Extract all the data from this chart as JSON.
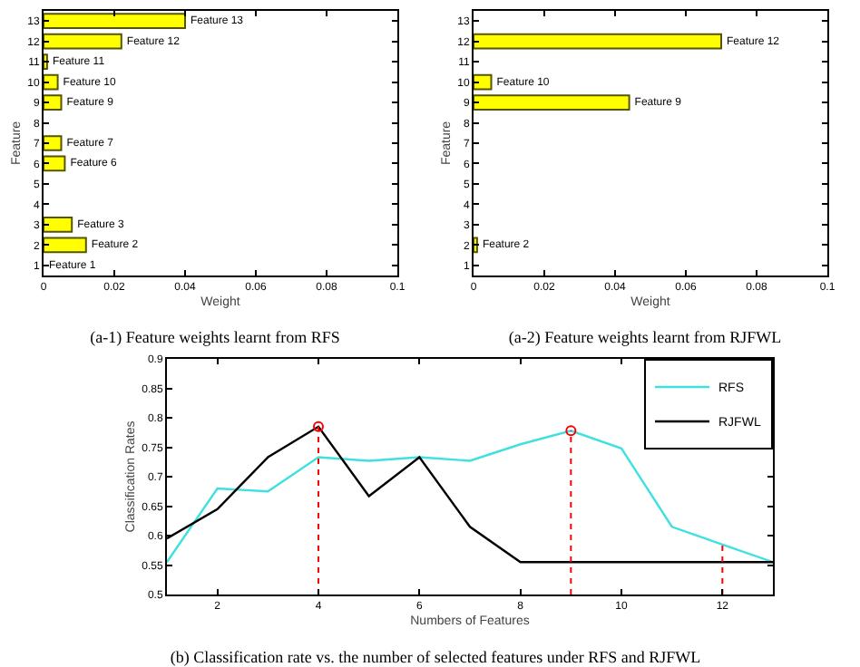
{
  "chart_data": [
    {
      "type": "bar",
      "orientation": "horizontal",
      "title": "(a-1) Feature weights learnt from RFS",
      "xlabel": "Weight",
      "ylabel": "Feature",
      "categories": [
        "13",
        "12",
        "11",
        "10",
        "9",
        "8",
        "7",
        "6",
        "5",
        "4",
        "3",
        "2",
        "1"
      ],
      "values": [
        0.04,
        0.022,
        0.001,
        0.004,
        0.005,
        0,
        0.005,
        0.006,
        0,
        0,
        0.008,
        0.012,
        0
      ],
      "value_labels": [
        "Feature 13",
        "Feature 12",
        "Feature 11",
        "Feature 10",
        "Feature 9",
        null,
        "Feature 7",
        "Feature 6",
        null,
        null,
        "Feature 3",
        "Feature 2",
        "Feature 1"
      ],
      "color": "#ffff00",
      "xlim": [
        0,
        0.1
      ],
      "xticks": [
        0,
        0.02,
        0.04,
        0.06,
        0.08,
        0.1
      ],
      "grid": false,
      "legend": false
    },
    {
      "type": "bar",
      "orientation": "horizontal",
      "title": "(a-2) Feature weights learnt from RJFWL",
      "xlabel": "Weight",
      "ylabel": "Feature",
      "categories": [
        "13",
        "12",
        "11",
        "10",
        "9",
        "8",
        "7",
        "6",
        "5",
        "4",
        "3",
        "2",
        "1"
      ],
      "values": [
        0,
        0.07,
        0,
        0.005,
        0.044,
        0,
        0,
        0,
        0,
        0,
        0,
        0.001,
        0
      ],
      "value_labels": [
        null,
        "Feature 12",
        null,
        "Feature 10",
        "Feature 9",
        null,
        null,
        null,
        null,
        null,
        null,
        "Feature 2",
        null
      ],
      "color": "#ffff00",
      "xlim": [
        0,
        0.1
      ],
      "xticks": [
        0,
        0.02,
        0.04,
        0.06,
        0.08,
        0.1
      ],
      "grid": false,
      "legend": false
    },
    {
      "type": "line",
      "title": "(b) Classification rate vs. the number of selected features under RFS and RJFWL",
      "xlabel": "Numbers of Features",
      "ylabel": "Classification Rates",
      "x": [
        1,
        2,
        3,
        4,
        5,
        6,
        7,
        8,
        9,
        10,
        11,
        12,
        13
      ],
      "xlim": [
        1,
        13
      ],
      "xticks": [
        2,
        4,
        6,
        8,
        10,
        12
      ],
      "ylim": [
        0.5,
        0.9
      ],
      "yticks": [
        0.5,
        0.55,
        0.6,
        0.65,
        0.7,
        0.75,
        0.8,
        0.85,
        0.9
      ],
      "grid": false,
      "legend": "top right",
      "marker": "none",
      "line_style": "solid",
      "series": [
        {
          "name": "RFS",
          "color": "#40e0e0",
          "values": [
            0.555,
            0.68,
            0.675,
            0.733,
            0.727,
            0.733,
            0.727,
            0.755,
            0.778,
            0.748,
            0.615,
            0.585,
            0.555
          ]
        },
        {
          "name": "RJFWL",
          "color": "#000000",
          "values": [
            0.595,
            0.645,
            0.733,
            0.785,
            0.667,
            0.733,
            0.615,
            0.555,
            0.555,
            0.555,
            0.555,
            0.555,
            0.555
          ]
        },
        {
          "type": "line",
          "color": "#ff0000",
          "line_style": "dotted",
          "x": [
            4,
            4,
            null,
            9,
            9,
            null,
            12,
            12
          ],
          "values": [
            0.5,
            0.785,
            null,
            0.5,
            0.778,
            null,
            0.5,
            0.585
          ]
        },
        {
          "type": "scatter",
          "color": "#ff0000",
          "marker": "circle",
          "x": [
            4,
            9
          ],
          "values": [
            0.785,
            0.778
          ]
        }
      ]
    }
  ]
}
